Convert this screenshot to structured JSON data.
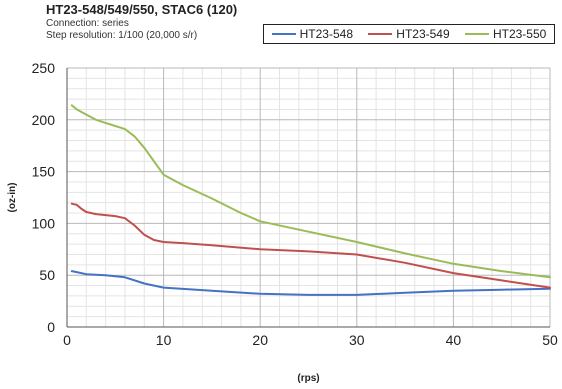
{
  "header": {
    "title": "HT23-548/549/550, STAC6 (120)",
    "connection": "Connection: series",
    "step_resolution": "Step resolution: 1/100 (20,000 s/r)"
  },
  "chart_data": {
    "type": "line",
    "title": "HT23-548/549/550, STAC6 (120)",
    "xlabel": "(rps)",
    "ylabel": "(oz-in)",
    "xlim": [
      0,
      50
    ],
    "ylim": [
      0,
      250
    ],
    "xticks": [
      0,
      10,
      20,
      30,
      40,
      50
    ],
    "yticks": [
      0,
      50,
      100,
      150,
      200,
      250
    ],
    "grid": true,
    "legend_position": "top-right",
    "series": [
      {
        "name": "HT23-548",
        "color": "#4472c4",
        "x": [
          0.5,
          1,
          2,
          4,
          6,
          8,
          10,
          15,
          20,
          25,
          30,
          35,
          40,
          45,
          50
        ],
        "y": [
          54,
          53,
          51,
          50,
          48,
          42,
          38,
          35,
          32,
          31,
          31,
          33,
          35,
          36,
          37
        ]
      },
      {
        "name": "HT23-549",
        "color": "#c0504d",
        "x": [
          0.5,
          1,
          1.5,
          2,
          3,
          4,
          5,
          6,
          7,
          8,
          9,
          10,
          12,
          15,
          20,
          25,
          30,
          35,
          40,
          45,
          50
        ],
        "y": [
          119,
          118,
          114,
          111,
          109,
          108,
          107,
          105,
          98,
          89,
          84,
          82,
          81,
          79,
          75,
          73,
          70,
          62,
          52,
          45,
          38
        ]
      },
      {
        "name": "HT23-550",
        "color": "#9bbb59",
        "x": [
          0.5,
          1,
          2,
          3,
          4,
          5,
          6,
          7,
          8,
          9,
          10,
          12,
          15,
          18,
          20,
          25,
          30,
          35,
          40,
          45,
          50
        ],
        "y": [
          214,
          210,
          205,
          200,
          197,
          194,
          191,
          184,
          173,
          160,
          147,
          137,
          124,
          110,
          102,
          92,
          82,
          71,
          61,
          54,
          48
        ]
      }
    ]
  }
}
